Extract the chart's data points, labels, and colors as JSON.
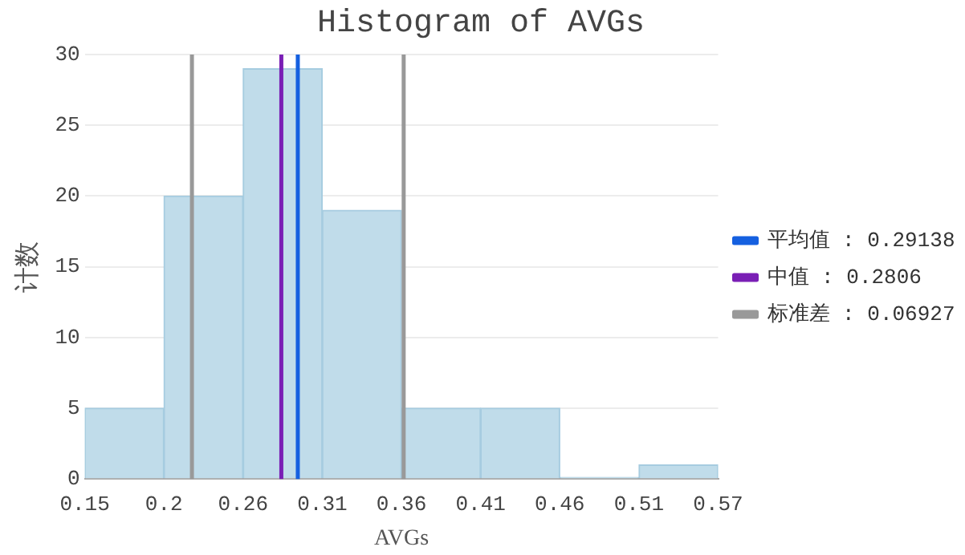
{
  "chart_data": {
    "type": "histogram",
    "title": "Histogram of AVGs",
    "xlabel": "AVGs",
    "ylabel": "计数",
    "bins": [
      0.152,
      0.2038,
      0.2556,
      0.3074,
      0.3592,
      0.411,
      0.4628,
      0.5146,
      0.5664
    ],
    "values": [
      5,
      20,
      29,
      19,
      5,
      5,
      0,
      1
    ],
    "color": "#c0dcea",
    "xlim": [
      0.152,
      0.5664
    ],
    "xticks": [
      {
        "value": 0.152,
        "label": "0.15"
      },
      {
        "value": 0.2038,
        "label": "0.2"
      },
      {
        "value": 0.2556,
        "label": "0.26"
      },
      {
        "value": 0.3074,
        "label": "0.31"
      },
      {
        "value": 0.3592,
        "label": "0.36"
      },
      {
        "value": 0.411,
        "label": "0.41"
      },
      {
        "value": 0.4628,
        "label": "0.46"
      },
      {
        "value": 0.5146,
        "label": "0.51"
      },
      {
        "value": 0.5664,
        "label": "0.57"
      }
    ],
    "ylim": [
      0,
      30
    ],
    "yticks": [
      0,
      5,
      10,
      15,
      20,
      25,
      30
    ],
    "grid": "y",
    "legend": "right",
    "series": [
      {
        "type": "line",
        "name": "平均值 : 0.29138",
        "color": "#1560e0",
        "x": [
          0.29138,
          0.29138
        ],
        "values": [
          0,
          30
        ]
      },
      {
        "type": "line",
        "name": "中值 : 0.2806",
        "color": "#7a1fb5",
        "x": [
          0.2806,
          0.2806
        ],
        "values": [
          0,
          30
        ]
      },
      {
        "type": "line",
        "name": "标准差 : 0.06927",
        "color": "#999999",
        "x": [
          0.22211,
          0.22211
        ],
        "values": [
          0,
          30
        ]
      },
      {
        "type": "line",
        "color": "#999999",
        "x": [
          0.36065,
          0.36065
        ],
        "values": [
          0,
          30
        ]
      }
    ]
  }
}
